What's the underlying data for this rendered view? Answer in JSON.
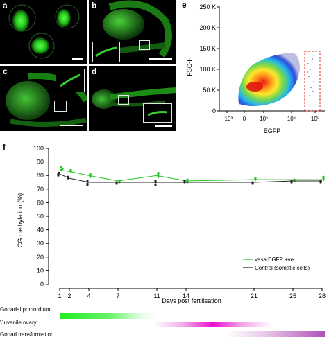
{
  "panels": {
    "a": {
      "label": "a"
    },
    "b": {
      "label": "b"
    },
    "c": {
      "label": "c"
    },
    "d": {
      "label": "d"
    },
    "e": {
      "label": "e"
    },
    "f": {
      "label": "f"
    }
  },
  "flow": {
    "ylabel": "FSC-H",
    "xlabel": "EGFP",
    "yticks": [
      "0",
      "50 K",
      "100 K",
      "150 K",
      "200 K",
      "250 K"
    ],
    "xticks": [
      "−10³",
      "0",
      "10³",
      "10⁴",
      "10⁵"
    ]
  },
  "chart_data": {
    "type": "line",
    "xlabel": "Days post fertilisation",
    "ylabel": "CG methylation (%)",
    "ylim": [
      0,
      100
    ],
    "yticks": [
      0,
      10,
      20,
      30,
      40,
      50,
      60,
      70,
      80,
      90,
      100
    ],
    "xticks": [
      1,
      2,
      4,
      7,
      11,
      14,
      21,
      25,
      28
    ],
    "legend_position": "lower-right",
    "series": [
      {
        "name": "vasa:EGFP +ve",
        "color": "#22c41e",
        "x": [
          1,
          2,
          4,
          7,
          11,
          14,
          21,
          25,
          28
        ],
        "y": [
          84,
          83,
          80,
          76,
          80,
          76,
          77,
          77,
          77
        ],
        "points": [
          [
            1,
            84
          ],
          [
            1,
            86
          ],
          [
            1.15,
            85
          ],
          [
            2,
            83
          ],
          [
            2,
            84
          ],
          [
            4,
            80
          ],
          [
            4,
            81
          ],
          [
            4,
            79
          ],
          [
            7,
            76
          ],
          [
            7,
            75
          ],
          [
            11,
            81
          ],
          [
            11,
            79
          ],
          [
            11,
            82
          ],
          [
            14,
            76
          ],
          [
            14,
            75
          ],
          [
            14,
            77
          ],
          [
            21,
            77
          ],
          [
            21,
            78
          ],
          [
            25,
            77
          ],
          [
            25,
            76
          ],
          [
            28,
            77
          ],
          [
            28,
            78
          ],
          [
            28,
            79
          ]
        ]
      },
      {
        "name": "Control (somatic cells)",
        "color": "#222222",
        "x": [
          1,
          2,
          4,
          7,
          11,
          14,
          21,
          25,
          28
        ],
        "y": [
          81,
          78,
          75,
          75,
          75,
          75,
          75,
          76,
          76
        ],
        "points": [
          [
            1,
            81
          ],
          [
            1,
            80
          ],
          [
            1.1,
            82
          ],
          [
            2,
            78
          ],
          [
            2,
            79
          ],
          [
            4,
            74
          ],
          [
            4,
            76
          ],
          [
            4,
            73
          ],
          [
            7,
            75
          ],
          [
            7,
            74
          ],
          [
            11,
            75
          ],
          [
            11,
            73
          ],
          [
            11,
            76
          ],
          [
            14,
            75
          ],
          [
            14,
            76
          ],
          [
            21,
            75
          ],
          [
            21,
            74
          ],
          [
            25,
            76
          ],
          [
            25,
            75
          ],
          [
            28,
            76
          ],
          [
            28,
            75
          ]
        ]
      }
    ]
  },
  "bars": [
    {
      "label": "Gonadal primordium",
      "color": "#33ee33"
    },
    {
      "label": "'Juvenile ovary'",
      "color": "#ee11cc"
    },
    {
      "label": "Gonad transformation",
      "color": "#aa33aa"
    }
  ]
}
